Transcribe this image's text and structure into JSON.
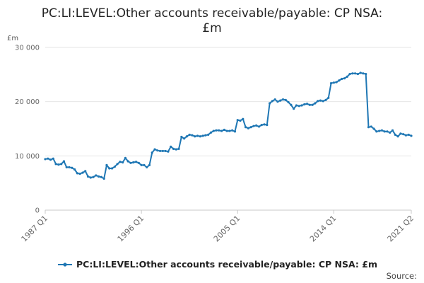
{
  "chart_data": {
    "type": "line",
    "title": "PC:LI:LEVEL:Other accounts receivable/payable: CP NSA: £m",
    "title_lines": [
      "PC:LI:LEVEL:Other accounts receivable/payable: CP NSA:",
      "£m"
    ],
    "ylabel": "£m",
    "ylim": [
      0,
      30000
    ],
    "yticks": [
      0,
      10000,
      20000,
      30000
    ],
    "ytick_labels": [
      "0",
      "10 000",
      "20 000",
      "30 000"
    ],
    "x_range": [
      "1987 Q1",
      "2021 Q2"
    ],
    "xtick_labels": [
      "1987 Q1",
      "1996 Q1",
      "2005 Q1",
      "2014 Q1",
      "2021 Q2"
    ],
    "grid": true,
    "legend": "bottom",
    "color": "#1f77b4",
    "series": [
      {
        "name": "PC:LI:LEVEL:Other accounts receivable/payable: CP NSA: £m",
        "points": [
          [
            "1987 Q1",
            9400
          ],
          [
            "1987 Q2",
            9500
          ],
          [
            "1987 Q3",
            9300
          ],
          [
            "1987 Q4",
            9500
          ],
          [
            "1988 Q1",
            8500
          ],
          [
            "1988 Q2",
            8400
          ],
          [
            "1988 Q3",
            8500
          ],
          [
            "1988 Q4",
            9000
          ],
          [
            "1989 Q1",
            7900
          ],
          [
            "1989 Q2",
            7900
          ],
          [
            "1989 Q3",
            7800
          ],
          [
            "1989 Q4",
            7500
          ],
          [
            "1990 Q1",
            6800
          ],
          [
            "1990 Q2",
            6700
          ],
          [
            "1990 Q3",
            6900
          ],
          [
            "1990 Q4",
            7200
          ],
          [
            "1991 Q1",
            6200
          ],
          [
            "1991 Q2",
            6000
          ],
          [
            "1991 Q3",
            6100
          ],
          [
            "1991 Q4",
            6400
          ],
          [
            "1992 Q1",
            6200
          ],
          [
            "1992 Q2",
            6100
          ],
          [
            "1992 Q3",
            5800
          ],
          [
            "1992 Q4",
            8300
          ],
          [
            "1993 Q1",
            7700
          ],
          [
            "1993 Q2",
            7700
          ],
          [
            "1993 Q3",
            8000
          ],
          [
            "1993 Q4",
            8500
          ],
          [
            "1994 Q1",
            8900
          ],
          [
            "1994 Q2",
            8800
          ],
          [
            "1994 Q3",
            9600
          ],
          [
            "1994 Q4",
            9000
          ],
          [
            "1995 Q1",
            8700
          ],
          [
            "1995 Q2",
            8800
          ],
          [
            "1995 Q3",
            8900
          ],
          [
            "1995 Q4",
            8700
          ],
          [
            "1996 Q1",
            8300
          ],
          [
            "1996 Q2",
            8300
          ],
          [
            "1996 Q3",
            7900
          ],
          [
            "1996 Q4",
            8300
          ],
          [
            "1997 Q1",
            10600
          ],
          [
            "1997 Q2",
            11200
          ],
          [
            "1997 Q3",
            11000
          ],
          [
            "1997 Q4",
            10900
          ],
          [
            "1998 Q1",
            10900
          ],
          [
            "1998 Q2",
            10900
          ],
          [
            "1998 Q3",
            10800
          ],
          [
            "1998 Q4",
            11700
          ],
          [
            "1999 Q1",
            11300
          ],
          [
            "1999 Q2",
            11200
          ],
          [
            "1999 Q3",
            11300
          ],
          [
            "1999 Q4",
            13500
          ],
          [
            "2000 Q1",
            13200
          ],
          [
            "2000 Q2",
            13600
          ],
          [
            "2000 Q3",
            13900
          ],
          [
            "2000 Q4",
            13800
          ],
          [
            "2001 Q1",
            13600
          ],
          [
            "2001 Q2",
            13700
          ],
          [
            "2001 Q3",
            13600
          ],
          [
            "2001 Q4",
            13700
          ],
          [
            "2002 Q1",
            13800
          ],
          [
            "2002 Q2",
            13900
          ],
          [
            "2002 Q3",
            14300
          ],
          [
            "2002 Q4",
            14600
          ],
          [
            "2003 Q1",
            14700
          ],
          [
            "2003 Q2",
            14700
          ],
          [
            "2003 Q3",
            14600
          ],
          [
            "2003 Q4",
            14800
          ],
          [
            "2004 Q1",
            14600
          ],
          [
            "2004 Q2",
            14600
          ],
          [
            "2004 Q3",
            14700
          ],
          [
            "2004 Q4",
            14500
          ],
          [
            "2005 Q1",
            16600
          ],
          [
            "2005 Q2",
            16500
          ],
          [
            "2005 Q3",
            16800
          ],
          [
            "2005 Q4",
            15300
          ],
          [
            "2006 Q1",
            15100
          ],
          [
            "2006 Q2",
            15300
          ],
          [
            "2006 Q3",
            15500
          ],
          [
            "2006 Q4",
            15600
          ],
          [
            "2007 Q1",
            15400
          ],
          [
            "2007 Q2",
            15700
          ],
          [
            "2007 Q3",
            15800
          ],
          [
            "2007 Q4",
            15700
          ],
          [
            "2008 Q1",
            19700
          ],
          [
            "2008 Q2",
            20100
          ],
          [
            "2008 Q3",
            20400
          ],
          [
            "2008 Q4",
            20000
          ],
          [
            "2009 Q1",
            20200
          ],
          [
            "2009 Q2",
            20400
          ],
          [
            "2009 Q3",
            20300
          ],
          [
            "2009 Q4",
            19900
          ],
          [
            "2010 Q1",
            19400
          ],
          [
            "2010 Q2",
            18700
          ],
          [
            "2010 Q3",
            19300
          ],
          [
            "2010 Q4",
            19200
          ],
          [
            "2011 Q1",
            19300
          ],
          [
            "2011 Q2",
            19500
          ],
          [
            "2011 Q3",
            19600
          ],
          [
            "2011 Q4",
            19400
          ],
          [
            "2012 Q1",
            19400
          ],
          [
            "2012 Q2",
            19700
          ],
          [
            "2012 Q3",
            20100
          ],
          [
            "2012 Q4",
            20200
          ],
          [
            "2013 Q1",
            20100
          ],
          [
            "2013 Q2",
            20300
          ],
          [
            "2013 Q3",
            20700
          ],
          [
            "2013 Q4",
            23400
          ],
          [
            "2014 Q1",
            23500
          ],
          [
            "2014 Q2",
            23600
          ],
          [
            "2014 Q3",
            23900
          ],
          [
            "2014 Q4",
            24200
          ],
          [
            "2015 Q1",
            24300
          ],
          [
            "2015 Q2",
            24600
          ],
          [
            "2015 Q3",
            25100
          ],
          [
            "2015 Q4",
            25200
          ],
          [
            "2016 Q1",
            25200
          ],
          [
            "2016 Q2",
            25100
          ],
          [
            "2016 Q3",
            25300
          ],
          [
            "2016 Q4",
            25200
          ],
          [
            "2017 Q1",
            25100
          ],
          [
            "2017 Q2",
            15300
          ],
          [
            "2017 Q3",
            15400
          ],
          [
            "2017 Q4",
            15000
          ],
          [
            "2018 Q1",
            14500
          ],
          [
            "2018 Q2",
            14600
          ],
          [
            "2018 Q3",
            14700
          ],
          [
            "2018 Q4",
            14500
          ],
          [
            "2019 Q1",
            14500
          ],
          [
            "2019 Q2",
            14300
          ],
          [
            "2019 Q3",
            14700
          ],
          [
            "2019 Q4",
            13900
          ],
          [
            "2020 Q1",
            13600
          ],
          [
            "2020 Q2",
            14100
          ],
          [
            "2020 Q3",
            14000
          ],
          [
            "2020 Q4",
            13800
          ],
          [
            "2021 Q1",
            13900
          ],
          [
            "2021 Q2",
            13700
          ]
        ]
      }
    ]
  },
  "footer": {
    "source_label": "Source:"
  }
}
